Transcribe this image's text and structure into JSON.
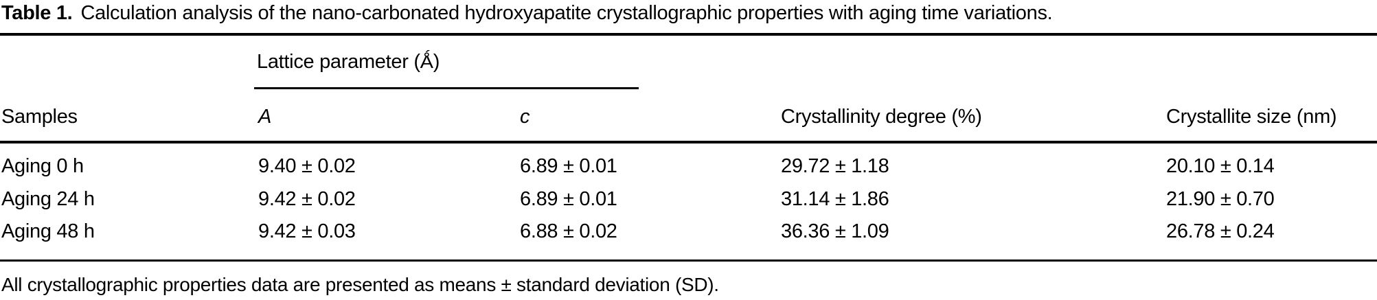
{
  "caption": {
    "label": "Table 1.",
    "text": "Calculation analysis of the nano-carbonated hydroxyapatite crystallographic properties with aging time variations."
  },
  "table": {
    "span_header": "Lattice parameter (Ǻ)",
    "columns": [
      "Samples",
      "A",
      "c",
      "Crystallinity degree (%)",
      "Crystallite size (nm)"
    ],
    "rows": [
      {
        "sample": "Aging 0 h",
        "a": "9.40 ± 0.02",
        "c": "6.89 ± 0.01",
        "crystallinity": "29.72 ± 1.18",
        "size": "20.10 ± 0.14"
      },
      {
        "sample": "Aging 24 h",
        "a": "9.42 ± 0.02",
        "c": "6.89 ± 0.01",
        "crystallinity": "31.14 ± 1.86",
        "size": "21.90 ± 0.70"
      },
      {
        "sample": "Aging 48 h",
        "a": "9.42 ± 0.03",
        "c": "6.88 ± 0.02",
        "crystallinity": "36.36 ± 1.09",
        "size": "26.78 ± 0.24"
      }
    ]
  },
  "footnote": "All crystallographic properties data are presented as means ± standard deviation (SD)."
}
